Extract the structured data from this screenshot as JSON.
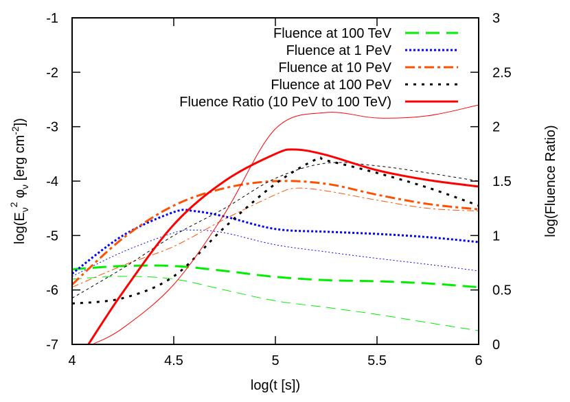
{
  "chart_data": {
    "type": "line",
    "xlabel": "log(t [s])",
    "ylabel_left": {
      "prefix": "log(E",
      "sub1": "ν",
      "sup1": "2",
      "mid": " φ",
      "sub2": "ν",
      "unit": " [erg cm",
      "sup2": "-2",
      "end": "])"
    },
    "ylabel_right": "log(Fluence Ratio)",
    "xlim": [
      4,
      6
    ],
    "ylim_left": [
      -7,
      -1
    ],
    "ylim_right": [
      0,
      3
    ],
    "xticks": [
      "4",
      "4.5",
      "5",
      "5.5",
      "6"
    ],
    "xtick_values": [
      4,
      4.5,
      5,
      5.5,
      6
    ],
    "yticks_left": [
      "-1",
      "-2",
      "-3",
      "-4",
      "-5",
      "-6",
      "-7"
    ],
    "ytick_left_values": [
      -1,
      -2,
      -3,
      -4,
      -5,
      -6,
      -7
    ],
    "yticks_right": [
      "3",
      "2.5",
      "2",
      "1.5",
      "1",
      "0.5",
      "0"
    ],
    "ytick_right_values": [
      3,
      2.5,
      2,
      1.5,
      1,
      0.5,
      0
    ],
    "grid": false,
    "legend_position": "top-right",
    "series": [
      {
        "name": "Fluence at 100 TeV",
        "color": "#00ee00",
        "style": "dashed",
        "axis": "left",
        "thick": {
          "x": [
            4,
            4.25,
            4.5,
            4.75,
            5,
            5.25,
            5.5,
            5.75,
            6
          ],
          "y": [
            -5.62,
            -5.56,
            -5.56,
            -5.65,
            -5.76,
            -5.82,
            -5.84,
            -5.88,
            -5.95
          ]
        },
        "thin": {
          "x": [
            4,
            4.25,
            4.5,
            4.75,
            5,
            5.25,
            5.5,
            5.75,
            6
          ],
          "y": [
            -5.8,
            -5.75,
            -5.8,
            -6.0,
            -6.2,
            -6.32,
            -6.45,
            -6.6,
            -6.75
          ]
        }
      },
      {
        "name": "Fluence at 1 PeV",
        "color": "#0000ff",
        "style": "dotted",
        "axis": "left",
        "thick": {
          "x": [
            4,
            4.25,
            4.5,
            4.6,
            4.75,
            5,
            5.25,
            5.5,
            5.75,
            6
          ],
          "y": [
            -5.7,
            -5.0,
            -4.57,
            -4.55,
            -4.65,
            -4.88,
            -4.93,
            -4.97,
            -5.03,
            -5.12
          ]
        },
        "thin": {
          "x": [
            4,
            4.25,
            4.5,
            4.6,
            4.75,
            5,
            5.25,
            5.5,
            5.75,
            6
          ],
          "y": [
            -5.75,
            -5.3,
            -4.95,
            -4.9,
            -4.95,
            -5.17,
            -5.3,
            -5.42,
            -5.53,
            -5.65
          ]
        }
      },
      {
        "name": "Fluence at 10 PeV",
        "color": "#ff5000",
        "style": "dashdot",
        "axis": "left",
        "thick": {
          "x": [
            4,
            4.25,
            4.5,
            4.75,
            5,
            5.25,
            5.5,
            5.75,
            6
          ],
          "y": [
            -5.9,
            -5.05,
            -4.45,
            -4.13,
            -4.0,
            -4.05,
            -4.25,
            -4.42,
            -4.52
          ]
        },
        "thin": {
          "x": [
            4,
            4.25,
            4.5,
            4.75,
            5,
            5.1,
            5.25,
            5.5,
            5.75,
            6
          ],
          "y": [
            -5.95,
            -5.55,
            -5.2,
            -4.7,
            -4.25,
            -4.13,
            -4.18,
            -4.35,
            -4.5,
            -4.55
          ]
        }
      },
      {
        "name": "Fluence at 100 PeV",
        "color": "#000000",
        "style": "dotted-sparse",
        "axis": "left",
        "thick": {
          "x": [
            4,
            4.25,
            4.5,
            4.75,
            5,
            5.2,
            5.25,
            5.5,
            5.75,
            6
          ],
          "y": [
            -6.25,
            -6.15,
            -5.75,
            -4.85,
            -4.05,
            -3.6,
            -3.62,
            -3.85,
            -4.12,
            -4.45
          ]
        },
        "thin": {
          "x": [
            4,
            4.25,
            4.5,
            4.75,
            5,
            5.25,
            5.5,
            5.75,
            6
          ],
          "y": [
            -6.15,
            -5.6,
            -5.0,
            -4.5,
            -3.95,
            -3.67,
            -3.72,
            -3.85,
            -4.0
          ]
        }
      },
      {
        "name": "Fluence Ratio (10 PeV to 100 TeV)",
        "color": "#ff0000",
        "style": "solid",
        "axis": "right",
        "thick": {
          "x": [
            4.08,
            4.25,
            4.5,
            4.75,
            5,
            5.1,
            5.25,
            5.5,
            5.75,
            6
          ],
          "y": [
            0,
            0.48,
            1.1,
            1.5,
            1.75,
            1.79,
            1.74,
            1.6,
            1.51,
            1.45
          ]
        },
        "thin": {
          "x": [
            4.1,
            4.25,
            4.5,
            4.75,
            5,
            5.25,
            5.5,
            5.75,
            6
          ],
          "y": [
            0,
            0.15,
            0.55,
            1.2,
            1.98,
            2.13,
            2.08,
            2.1,
            2.2
          ]
        }
      }
    ]
  }
}
